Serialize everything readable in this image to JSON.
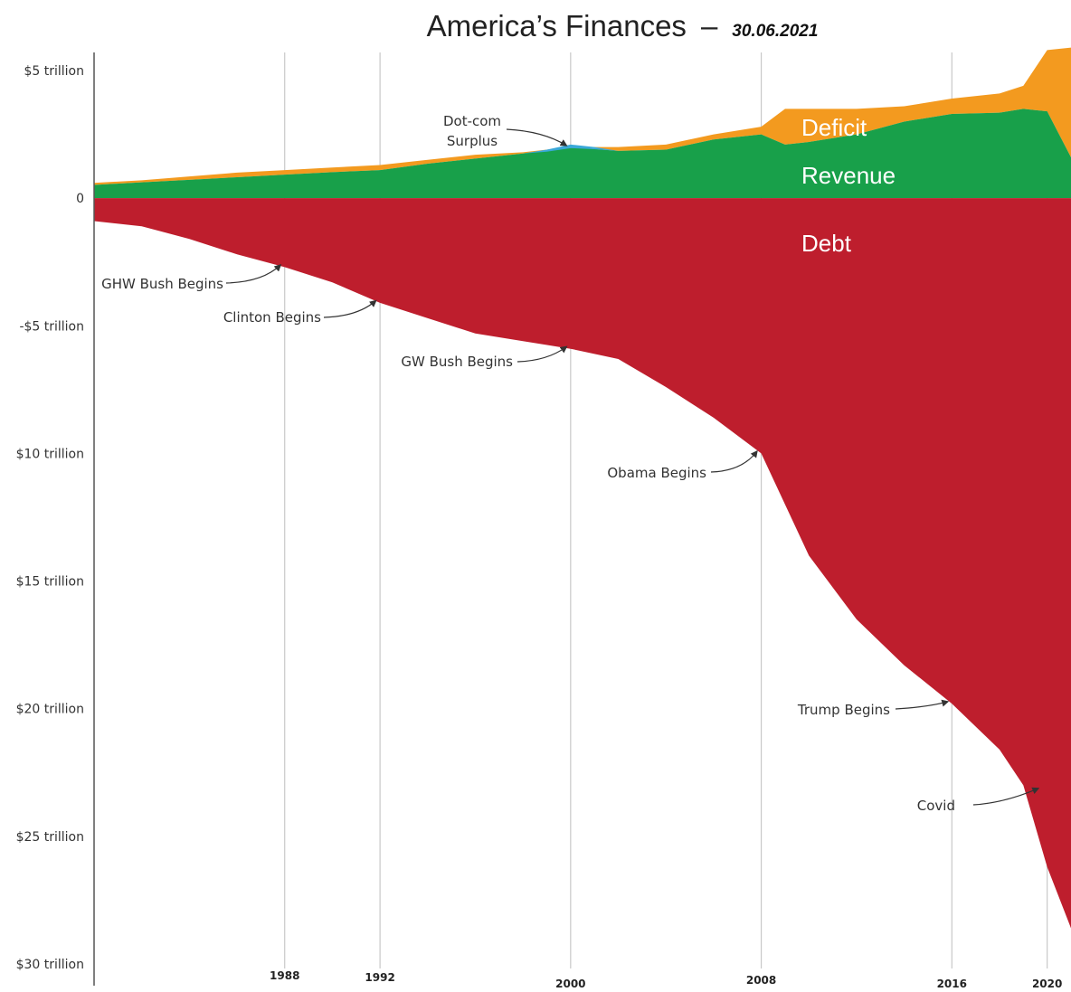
{
  "chart_data": {
    "type": "area",
    "title": "America’s Finances",
    "subtitle": "30.06.2021",
    "xlim": [
      1980,
      2021
    ],
    "ylim": [
      -30,
      5
    ],
    "y_ticks": [
      {
        "value": 5,
        "label": "$5 trillion"
      },
      {
        "value": 0,
        "label": "0"
      },
      {
        "value": -5,
        "label": "-$5 trillion"
      },
      {
        "value": -10,
        "label": "$10 trillion"
      },
      {
        "value": -15,
        "label": "$15 trillion"
      },
      {
        "value": -20,
        "label": "$20 trillion"
      },
      {
        "value": -25,
        "label": "$25 trillion"
      },
      {
        "value": -30,
        "label": "$30 trillion"
      }
    ],
    "x_ticks": [
      {
        "value": 1988,
        "label": "1988"
      },
      {
        "value": 1992,
        "label": "1992"
      },
      {
        "value": 2000,
        "label": "2000"
      },
      {
        "value": 2008,
        "label": "2008"
      },
      {
        "value": 2016,
        "label": "2016"
      },
      {
        "value": 2020,
        "label": "2020"
      }
    ],
    "grid_x": true,
    "series": [
      {
        "name": "Deficit",
        "color": "#f39a1f",
        "x": [
          1980,
          1982,
          1984,
          1986,
          1988,
          1990,
          1992,
          1994,
          1996,
          1998,
          2000,
          2002,
          2004,
          2006,
          2008,
          2009,
          2010,
          2012,
          2014,
          2016,
          2018,
          2019,
          2020,
          2021
        ],
        "top": [
          0.6,
          0.7,
          0.85,
          1.0,
          1.1,
          1.2,
          1.3,
          1.5,
          1.7,
          1.8,
          2.0,
          2.0,
          2.1,
          2.5,
          2.8,
          3.5,
          3.5,
          3.5,
          3.6,
          3.9,
          4.1,
          4.4,
          5.8,
          5.9
        ],
        "bottom": [
          0.52,
          0.62,
          0.72,
          0.82,
          0.92,
          1.02,
          1.1,
          1.35,
          1.55,
          1.75,
          2.0,
          1.85,
          1.9,
          2.3,
          2.5,
          2.1,
          2.2,
          2.5,
          3.0,
          3.3,
          3.35,
          3.5,
          3.4,
          1.6
        ]
      },
      {
        "name": "Revenue",
        "color": "#18a04a",
        "x": [
          1980,
          1982,
          1984,
          1986,
          1988,
          1990,
          1992,
          1994,
          1996,
          1998,
          2000,
          2002,
          2004,
          2006,
          2008,
          2009,
          2010,
          2012,
          2014,
          2016,
          2018,
          2019,
          2020,
          2021
        ],
        "values": [
          0.52,
          0.62,
          0.72,
          0.82,
          0.92,
          1.02,
          1.1,
          1.35,
          1.55,
          1.75,
          2.0,
          1.85,
          1.9,
          2.3,
          2.5,
          2.1,
          2.2,
          2.5,
          3.0,
          3.3,
          3.35,
          3.5,
          3.4,
          1.6
        ]
      },
      {
        "name": "Dot-com Surplus",
        "color": "#3aa8d8",
        "x": [
          1998,
          1999,
          2000,
          2001,
          2002
        ],
        "top": [
          1.75,
          1.9,
          2.1,
          2.0,
          1.85
        ],
        "bottom": [
          1.75,
          1.82,
          1.96,
          1.92,
          1.85
        ]
      },
      {
        "name": "Debt",
        "color": "#be1e2d",
        "x": [
          1980,
          1982,
          1984,
          1986,
          1988,
          1990,
          1992,
          1994,
          1996,
          1998,
          2000,
          2002,
          2004,
          2006,
          2008,
          2010,
          2012,
          2014,
          2016,
          2018,
          2019,
          2020,
          2021
        ],
        "values": [
          -0.9,
          -1.1,
          -1.6,
          -2.2,
          -2.7,
          -3.3,
          -4.1,
          -4.7,
          -5.3,
          -5.6,
          -5.9,
          -6.3,
          -7.4,
          -8.6,
          -10.0,
          -14.0,
          -16.5,
          -18.3,
          -19.8,
          -21.6,
          -23.0,
          -26.2,
          -28.6
        ]
      }
    ],
    "area_labels": {
      "deficit": "Deficit",
      "revenue": "Revenue",
      "debt": "Debt"
    },
    "annotations": [
      {
        "text": "Dot-com",
        "text2": "Surplus",
        "x": 2000,
        "y": 2.0
      },
      {
        "text": "GHW Bush Begins",
        "x": 1988,
        "y": -2.7
      },
      {
        "text": "Clinton Begins",
        "x": 1992,
        "y": -4.1
      },
      {
        "text": "GW Bush Begins",
        "x": 2000,
        "y": -5.9
      },
      {
        "text": "Obama Begins",
        "x": 2008,
        "y": -10.0
      },
      {
        "text": "Trump Begins",
        "x": 2016,
        "y": -19.8
      },
      {
        "text": "Covid",
        "x": 2019.8,
        "y": -23.2
      }
    ]
  }
}
